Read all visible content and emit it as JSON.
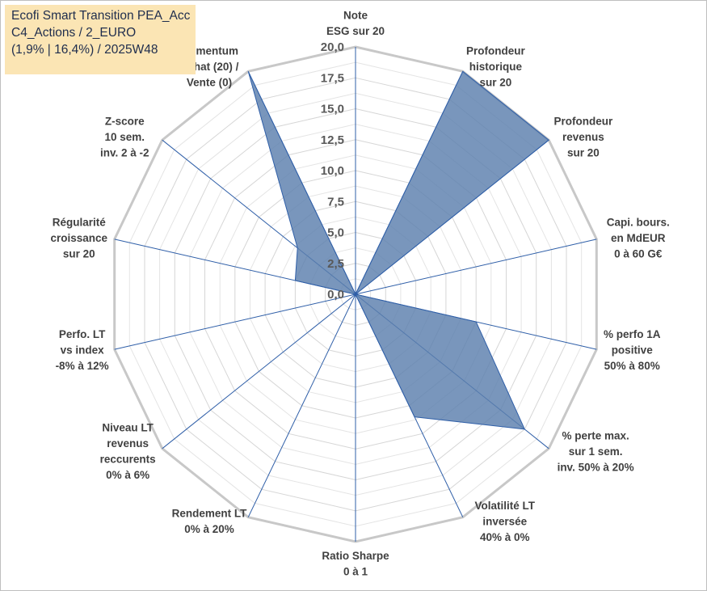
{
  "title_lines": [
    "Ecofi Smart Transition PEA_Acc",
    "C4_Actions / 2_EURO",
    "(1,9% | 16,4%) / 2025W48"
  ],
  "chart_data": {
    "type": "radar",
    "title": "Ecofi Smart Transition PEA_Acc C4_Actions / 2_EURO (1,9% | 16,4%) / 2025W48",
    "rmin": 0,
    "rmax": 20,
    "ticks": [
      "0,0",
      "2,5",
      "5,0",
      "7,5",
      "10,0",
      "12,5",
      "15,0",
      "17,5",
      "20,0"
    ],
    "grid_levels": 16,
    "fill_color": "#5b7fad",
    "line_color": "#2f5fa8",
    "grid_color": "#d0d0d0",
    "axes": [
      {
        "label": [
          "Note",
          "ESG sur 20"
        ],
        "value": 0
      },
      {
        "label": [
          "Profondeur",
          "historique",
          "sur 20"
        ],
        "value": 20
      },
      {
        "label": [
          "Profondeur",
          "revenus",
          "sur 20"
        ],
        "value": 20
      },
      {
        "label": [
          "Capi. bours.",
          "en MdEUR",
          "0 à 60 G€"
        ],
        "value": 0
      },
      {
        "label": [
          "% perfo 1A",
          "positive",
          "50% à 80%"
        ],
        "value": 10
      },
      {
        "label": [
          "% perte max.",
          "sur 1 sem.",
          "inv. 50% à 20%"
        ],
        "value": 17.5
      },
      {
        "label": [
          "Volatilité LT",
          "inversée",
          "40% à 0%"
        ],
        "value": 11
      },
      {
        "label": [
          "Ratio Sharpe",
          "0 à 1"
        ],
        "value": 0
      },
      {
        "label": [
          "Rendement LT",
          "0% à 20%"
        ],
        "value": 0
      },
      {
        "label": [
          "Niveau LT",
          "revenus",
          "reccurents",
          "0% à 6%"
        ],
        "value": 0
      },
      {
        "label": [
          "Perfo. LT",
          "vs index",
          "-8% à 12%"
        ],
        "value": 0
      },
      {
        "label": [
          "Régularité",
          "croissance",
          "sur 20"
        ],
        "value": 5
      },
      {
        "label": [
          "Z-score",
          "10 sem.",
          "inv. 2 à -2"
        ],
        "value": 6
      },
      {
        "label": [
          "Momentum",
          "Achat (20) /",
          "Vente (0)"
        ],
        "value": 20
      }
    ]
  }
}
